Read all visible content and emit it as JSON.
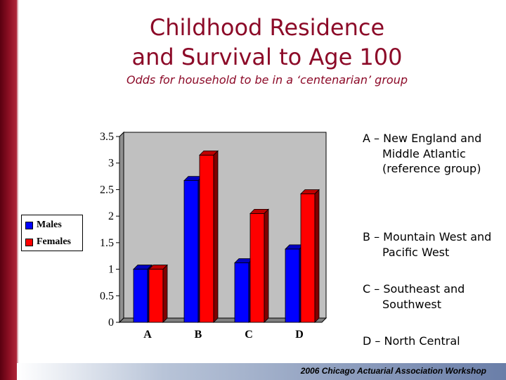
{
  "slide": {
    "title_lines": [
      "Childhood Residence",
      "and Survival to Age 100"
    ],
    "subtitle": "Odds for household to be in a ‘centenarian’ group",
    "footer": "2006 Chicago Actuarial Association Workshop"
  },
  "notes": [
    "A – New England and Middle Atlantic (reference group)",
    "B – Mountain West and Pacific West",
    "C – Southeast and Southwest",
    "D – North Central"
  ],
  "colors": {
    "brand": "#8c0a28",
    "males": "#0000ff",
    "females": "#ff0000",
    "plot_wall": "#c0c0c0"
  },
  "chart_data": {
    "type": "bar",
    "title": "Childhood Residence and Survival to Age 100",
    "categories": [
      "A",
      "B",
      "C",
      "D"
    ],
    "series": [
      {
        "name": "Males",
        "values": [
          1.0,
          2.67,
          1.12,
          1.38
        ]
      },
      {
        "name": "Females",
        "values": [
          1.0,
          3.15,
          2.05,
          2.42
        ]
      }
    ],
    "ylim": [
      0,
      3.5
    ],
    "yticks": [
      "0",
      "0.5",
      "1",
      "1.5",
      "2",
      "2.5",
      "3",
      "3.5"
    ],
    "xlabel": "",
    "ylabel": "",
    "legend": "left",
    "grid": false
  }
}
